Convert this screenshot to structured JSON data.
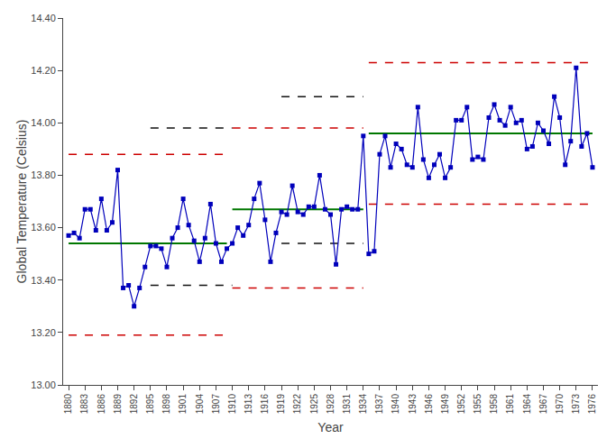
{
  "chart_data": {
    "type": "line",
    "xlabel": "Year",
    "ylabel": "Global Temperature (Celsius)",
    "xlim": [
      1879,
      1977
    ],
    "xticks": [
      1880,
      1883,
      1886,
      1889,
      1892,
      1895,
      1898,
      1901,
      1904,
      1907,
      1910,
      1913,
      1916,
      1919,
      1922,
      1925,
      1928,
      1931,
      1934,
      1937,
      1940,
      1943,
      1946,
      1949,
      1952,
      1955,
      1958,
      1961,
      1964,
      1967,
      1970,
      1973,
      1976
    ],
    "ylim": [
      13.0,
      14.4
    ],
    "yticks": [
      {
        "value": 13.0,
        "label": "13.00"
      },
      {
        "value": 13.2,
        "label": "13.20"
      },
      {
        "value": 13.4,
        "label": "13.40"
      },
      {
        "value": 13.6,
        "label": "13.60"
      },
      {
        "value": 13.8,
        "label": "13.80"
      },
      {
        "value": 14.0,
        "label": "14.00"
      },
      {
        "value": 14.2,
        "label": "14.20"
      },
      {
        "value": 14.4,
        "label": "14.40"
      }
    ],
    "grid": false,
    "series": [
      {
        "color": "#0000BB",
        "marker": "square",
        "line_style": "solid",
        "x": [
          1880,
          1881,
          1882,
          1883,
          1884,
          1885,
          1886,
          1887,
          1888,
          1889,
          1890,
          1891,
          1892,
          1893,
          1894,
          1895,
          1896,
          1897,
          1898,
          1899,
          1900,
          1901,
          1902,
          1903,
          1904,
          1905,
          1906,
          1907,
          1908,
          1909,
          1910,
          1911,
          1912,
          1913,
          1914,
          1915,
          1916,
          1917,
          1918,
          1919,
          1920,
          1921,
          1922,
          1923,
          1924,
          1925,
          1926,
          1927,
          1928,
          1929,
          1930,
          1931,
          1932,
          1933,
          1934,
          1935,
          1936,
          1937,
          1938,
          1939,
          1940,
          1941,
          1942,
          1943,
          1944,
          1945,
          1946,
          1947,
          1948,
          1949,
          1950,
          1951,
          1952,
          1953,
          1954,
          1955,
          1956,
          1957,
          1958,
          1959,
          1960,
          1961,
          1962,
          1963,
          1964,
          1965,
          1966,
          1967,
          1968,
          1969,
          1970,
          1971,
          1972,
          1973,
          1974,
          1975,
          1976
        ],
        "values": [
          13.57,
          13.58,
          13.56,
          13.67,
          13.67,
          13.59,
          13.71,
          13.59,
          13.62,
          13.82,
          13.37,
          13.38,
          13.3,
          13.37,
          13.45,
          13.53,
          13.53,
          13.52,
          13.45,
          13.56,
          13.6,
          13.71,
          13.61,
          13.55,
          13.47,
          13.56,
          13.69,
          13.54,
          13.47,
          13.52,
          13.54,
          13.6,
          13.57,
          13.61,
          13.71,
          13.77,
          13.63,
          13.47,
          13.58,
          13.66,
          13.65,
          13.76,
          13.66,
          13.65,
          13.68,
          13.68,
          13.8,
          13.67,
          13.65,
          13.46,
          13.67,
          13.68,
          13.67,
          13.67,
          13.95,
          13.5,
          13.51,
          13.88,
          13.95,
          13.83,
          13.92,
          13.9,
          13.84,
          13.83,
          14.06,
          13.86,
          13.79,
          13.84,
          13.88,
          13.79,
          13.83,
          14.01,
          14.01,
          14.06,
          13.86,
          13.87,
          13.86,
          14.02,
          14.07,
          14.01,
          13.99,
          14.06,
          14.0,
          14.01,
          13.9,
          13.91,
          14.0,
          13.97,
          13.92,
          14.1,
          14.02,
          13.84,
          13.93,
          14.21,
          13.91,
          13.96,
          13.83
        ]
      },
      {
        "color": "#007700",
        "marker": "none",
        "line_style": "solid",
        "x": [
          1880,
          1909
        ],
        "values": [
          13.54,
          13.54
        ]
      },
      {
        "color": "#CC0000",
        "marker": "none",
        "line_style": "dashed",
        "x": [
          1880,
          1909
        ],
        "values": [
          13.88,
          13.88
        ]
      },
      {
        "color": "#CC0000",
        "marker": "none",
        "line_style": "dashed",
        "x": [
          1880,
          1909
        ],
        "values": [
          13.19,
          13.19
        ]
      },
      {
        "color": "#007700",
        "marker": "none",
        "line_style": "solid",
        "x": [
          1910,
          1934
        ],
        "values": [
          13.67,
          13.67
        ]
      },
      {
        "color": "#CC0000",
        "marker": "none",
        "line_style": "dashed",
        "x": [
          1910,
          1934
        ],
        "values": [
          13.98,
          13.98
        ]
      },
      {
        "color": "#CC0000",
        "marker": "none",
        "line_style": "dashed",
        "x": [
          1910,
          1934
        ],
        "values": [
          13.37,
          13.37
        ]
      },
      {
        "color": "#007700",
        "marker": "none",
        "line_style": "solid",
        "x": [
          1935,
          1976
        ],
        "values": [
          13.96,
          13.96
        ]
      },
      {
        "color": "#CC0000",
        "marker": "none",
        "line_style": "dashed",
        "x": [
          1935,
          1976
        ],
        "values": [
          14.23,
          14.23
        ]
      },
      {
        "color": "#CC0000",
        "marker": "none",
        "line_style": "dashed",
        "x": [
          1935,
          1976
        ],
        "values": [
          13.69,
          13.69
        ]
      },
      {
        "color": "#111111",
        "marker": "none",
        "line_style": "dashed",
        "x": [
          1895,
          1910
        ],
        "values": [
          13.98,
          13.98
        ]
      },
      {
        "color": "#111111",
        "marker": "none",
        "line_style": "dashed",
        "x": [
          1919,
          1934
        ],
        "values": [
          14.1,
          14.1
        ]
      },
      {
        "color": "#111111",
        "marker": "none",
        "line_style": "dashed",
        "x": [
          1919,
          1934
        ],
        "values": [
          13.54,
          13.54
        ]
      },
      {
        "color": "#111111",
        "marker": "none",
        "line_style": "dashed",
        "x": [
          1895,
          1910
        ],
        "values": [
          13.38,
          13.38
        ]
      }
    ]
  }
}
